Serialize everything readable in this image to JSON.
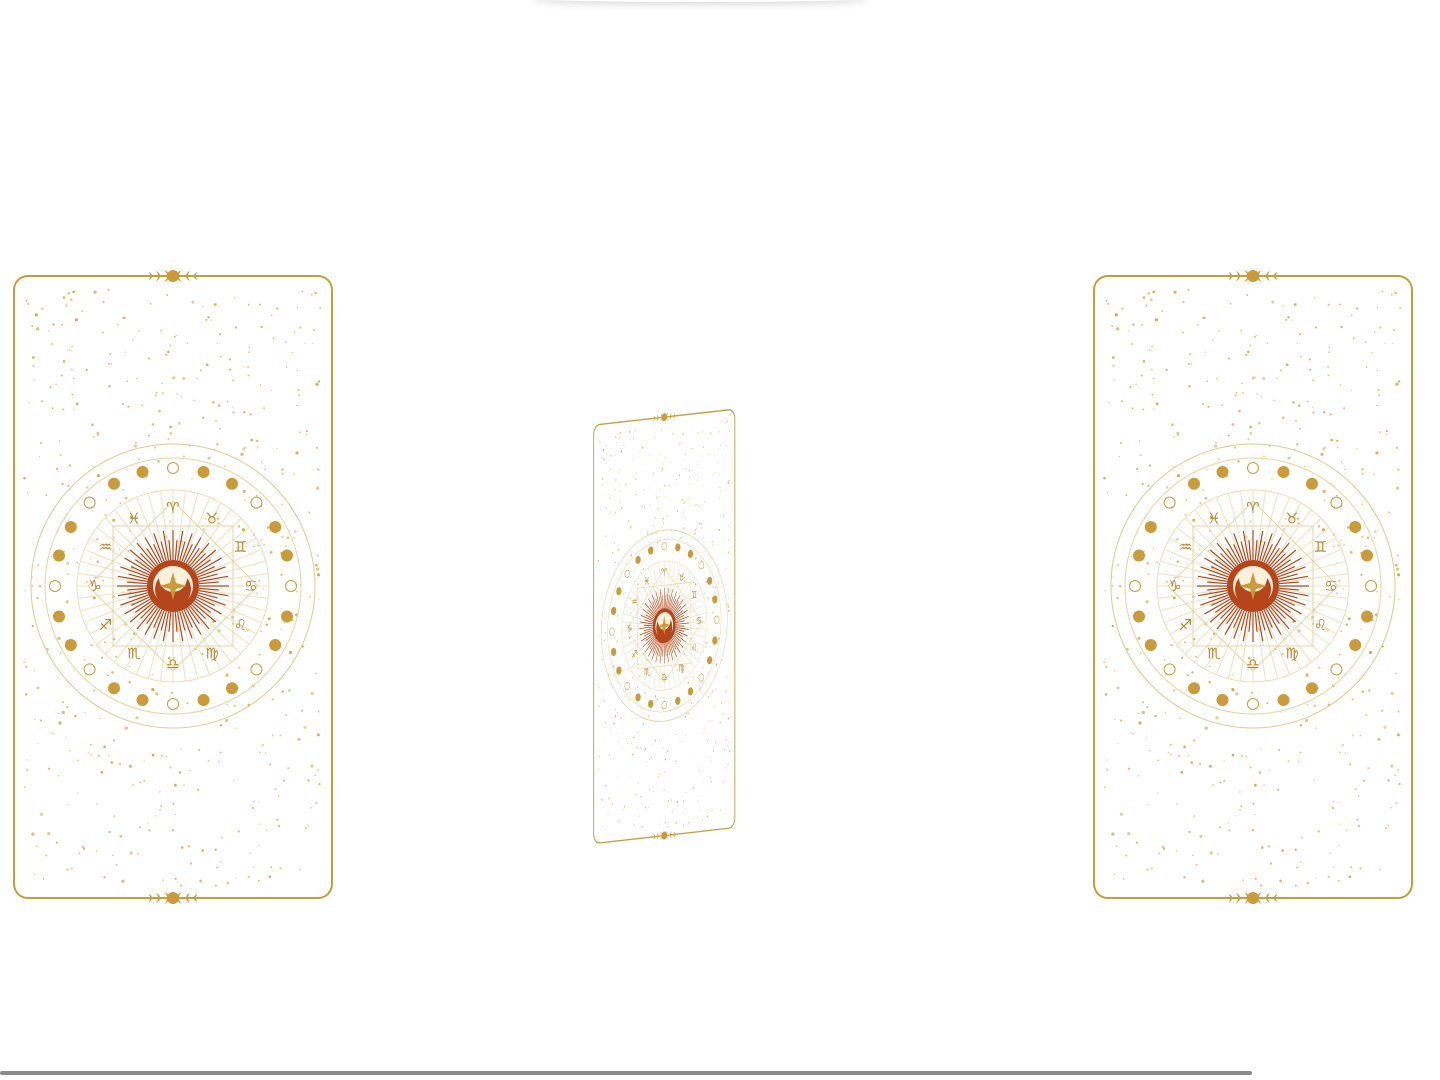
{
  "colors": {
    "gold": "#c99b3a",
    "gold_light": "#e8d2a0",
    "rust": "#b5451b",
    "cream": "#fdf7e8",
    "scrollbar": "#8a8a8a"
  },
  "cards": [
    {
      "id": "card-left",
      "state": "face-down"
    },
    {
      "id": "card-center",
      "state": "flipping"
    },
    {
      "id": "card-right",
      "state": "face-down"
    }
  ],
  "zodiac_glyphs": [
    "♈",
    "♉",
    "♊",
    "♋",
    "♌",
    "♍",
    "♎",
    "♏",
    "♐",
    "♑",
    "♒",
    "♓"
  ],
  "icons": {
    "card_back": "zodiac-wheel-icon",
    "top_ornament": "moon-phases-ornament-icon",
    "bottom_ornament": "moon-phases-ornament-icon"
  }
}
